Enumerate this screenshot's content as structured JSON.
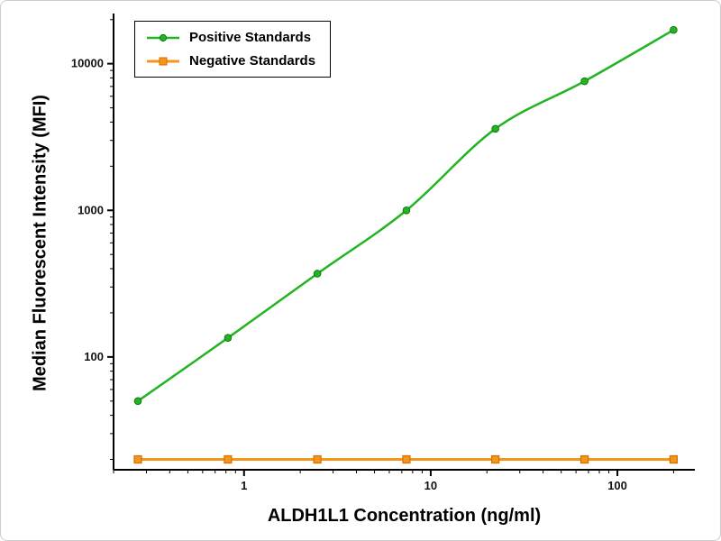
{
  "figure": {
    "background": "#ffffff",
    "border_color": "#cccccc"
  },
  "chart_data": {
    "type": "line",
    "title": "",
    "xlabel": "ALDH1L1 Concentration (ng/ml)",
    "ylabel": "Median Fluorescent Intensity (MFI)",
    "x_scale": "log",
    "y_scale": "log",
    "xlim": [
      0.2,
      260
    ],
    "ylim": [
      17,
      22000
    ],
    "grid": false,
    "x_ticks": [
      {
        "value": 1,
        "label": "1"
      },
      {
        "value": 10,
        "label": "10"
      },
      {
        "value": 100,
        "label": "100"
      }
    ],
    "y_ticks": [
      {
        "value": 100,
        "label": "100"
      },
      {
        "value": 1000,
        "label": "1000"
      },
      {
        "value": 10000,
        "label": "10000"
      }
    ],
    "legend": {
      "position": "top-left",
      "entries": [
        "Positive Standards",
        "Negative Standards"
      ]
    },
    "series": [
      {
        "name": "Positive Standards",
        "color": "#22b422",
        "marker_stroke": "#0e7a0e",
        "marker": "circle",
        "x": [
          0.27,
          0.82,
          2.47,
          7.41,
          22.2,
          66.7,
          200
        ],
        "y": [
          50,
          135,
          370,
          1000,
          3600,
          7600,
          17000
        ]
      },
      {
        "name": "Negative Standards",
        "color": "#f7941e",
        "marker_stroke": "#d66f00",
        "marker": "square",
        "x": [
          0.27,
          0.82,
          2.47,
          7.41,
          22.2,
          66.7,
          200
        ],
        "y": [
          20,
          20,
          20,
          20,
          20,
          20,
          20
        ]
      }
    ]
  }
}
